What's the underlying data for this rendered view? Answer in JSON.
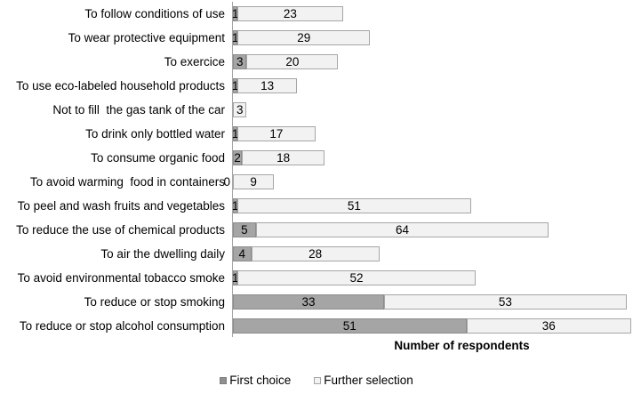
{
  "chart_data": {
    "type": "bar",
    "orientation": "horizontal",
    "stacked": true,
    "title": "",
    "xlabel": "Number of respondents",
    "ylabel": "",
    "x_max": 87,
    "grid": false,
    "legend_position": "bottom",
    "axis_color": "#a6a6a6",
    "categories": [
      "To follow conditions of use",
      "To wear protective equipment",
      "To exercice",
      "To use eco-labeled household products",
      "Not to fill  the gas tank of the car",
      "To drink only bottled water",
      "To consume organic food",
      "To avoid warming  food in containers",
      "To peel and wash fruits and vegetables",
      "To reduce the use of chemical products",
      "To air the dwelling daily",
      "To avoid environmental tobacco smoke",
      "To reduce or stop smoking",
      "To reduce or stop alcohol consumption"
    ],
    "series": [
      {
        "name": "First choice",
        "color": "#a5a5a5",
        "border_color": "#8c8c8c",
        "values": [
          1,
          1,
          3,
          1,
          null,
          1,
          2,
          0,
          1,
          5,
          4,
          1,
          33,
          51
        ]
      },
      {
        "name": "Further selection",
        "color": "#f2f2f2",
        "border_color": "#a6a6a6",
        "values": [
          23,
          29,
          20,
          13,
          3,
          17,
          18,
          9,
          51,
          64,
          28,
          52,
          53,
          36
        ]
      }
    ]
  },
  "legend": {
    "items": [
      {
        "label": "First choice"
      },
      {
        "label": "Further selection"
      }
    ]
  }
}
